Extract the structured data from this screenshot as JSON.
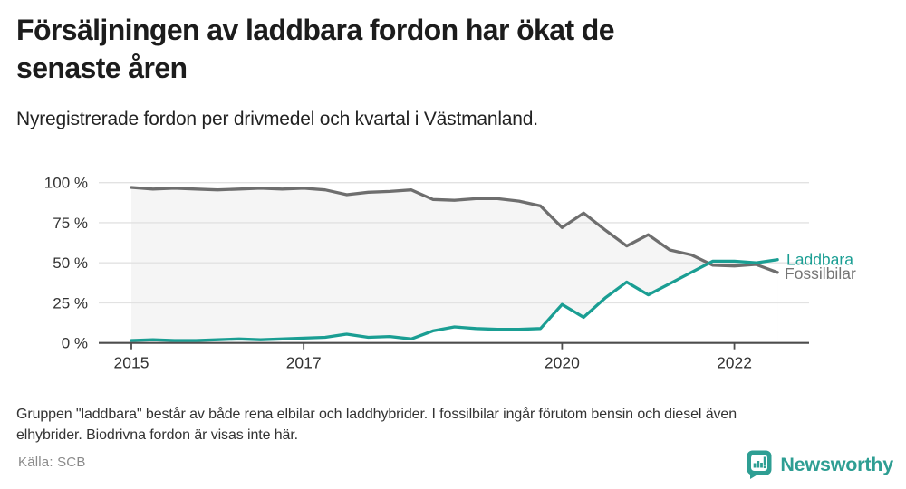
{
  "header": {
    "title_line1": "Försäljningen av laddbara fordon har ökat de",
    "title_line2": "senaste åren",
    "subtitle": "Nyregistrerade fordon per drivmedel och kvartal i Västmanland."
  },
  "chart_data": {
    "type": "line",
    "categories": [
      "2015 Q1",
      "2015 Q2",
      "2015 Q3",
      "2015 Q4",
      "2016 Q1",
      "2016 Q2",
      "2016 Q3",
      "2016 Q4",
      "2017 Q1",
      "2017 Q2",
      "2017 Q3",
      "2017 Q4",
      "2018 Q1",
      "2018 Q2",
      "2018 Q3",
      "2018 Q4",
      "2019 Q1",
      "2019 Q2",
      "2019 Q3",
      "2019 Q4",
      "2020 Q1",
      "2020 Q2",
      "2020 Q3",
      "2020 Q4",
      "2021 Q1",
      "2021 Q2",
      "2021 Q3",
      "2021 Q4",
      "2022 Q1",
      "2022 Q2",
      "2022 Q3"
    ],
    "series": [
      {
        "name": "Fossilbilar",
        "color": "#6e6e6e",
        "values": [
          97,
          96,
          96.5,
          96,
          95.5,
          96,
          96.5,
          96,
          96.5,
          95.5,
          92.5,
          94,
          94.5,
          95.5,
          89.5,
          89,
          90,
          90,
          88.5,
          85.5,
          72,
          81,
          70.5,
          60.5,
          67.5,
          58,
          55,
          48.5,
          48,
          49,
          44
        ]
      },
      {
        "name": "Laddbara",
        "color": "#1a9e93",
        "values": [
          1.5,
          2,
          1.5,
          1.5,
          2,
          2.5,
          2,
          2.5,
          3,
          3.5,
          5.5,
          3.5,
          4,
          2.5,
          7.5,
          10,
          9,
          8.5,
          8.5,
          9,
          24,
          16,
          28,
          38,
          30,
          37,
          44,
          51,
          51,
          50,
          52
        ]
      }
    ],
    "y_ticks": [
      {
        "label": "100 %",
        "value": 100
      },
      {
        "label": "75 %",
        "value": 75
      },
      {
        "label": "50 %",
        "value": 50
      },
      {
        "label": "25 %",
        "value": 25
      },
      {
        "label": "0 %",
        "value": 0
      }
    ],
    "x_ticks": [
      {
        "label": "2015",
        "index": 0
      },
      {
        "label": "2017",
        "index": 8
      },
      {
        "label": "2020",
        "index": 20
      },
      {
        "label": "2022",
        "index": 28
      }
    ],
    "ylim": [
      0,
      100
    ],
    "grid": "horizontal",
    "area_fill": "#f5f5f5",
    "axis_color": "#4d4d4d",
    "grid_color": "#e2e2e2",
    "tick_label_color": "#333333",
    "end_label_colors": {
      "Laddbara": "#1a9e93",
      "Fossilbilar": "#757575"
    },
    "legend_position": "end-of-line"
  },
  "footer": {
    "note_line1": "Gruppen \"laddbara\" består av både rena elbilar och laddhybrider. I fossilbilar ingår förutom bensin och diesel även",
    "note_line2": "elhybrider. Biodrivna fordon är visas inte här.",
    "source": "Källa: SCB"
  },
  "logo": {
    "text": "Newsworthy",
    "color": "#2e9e93"
  }
}
